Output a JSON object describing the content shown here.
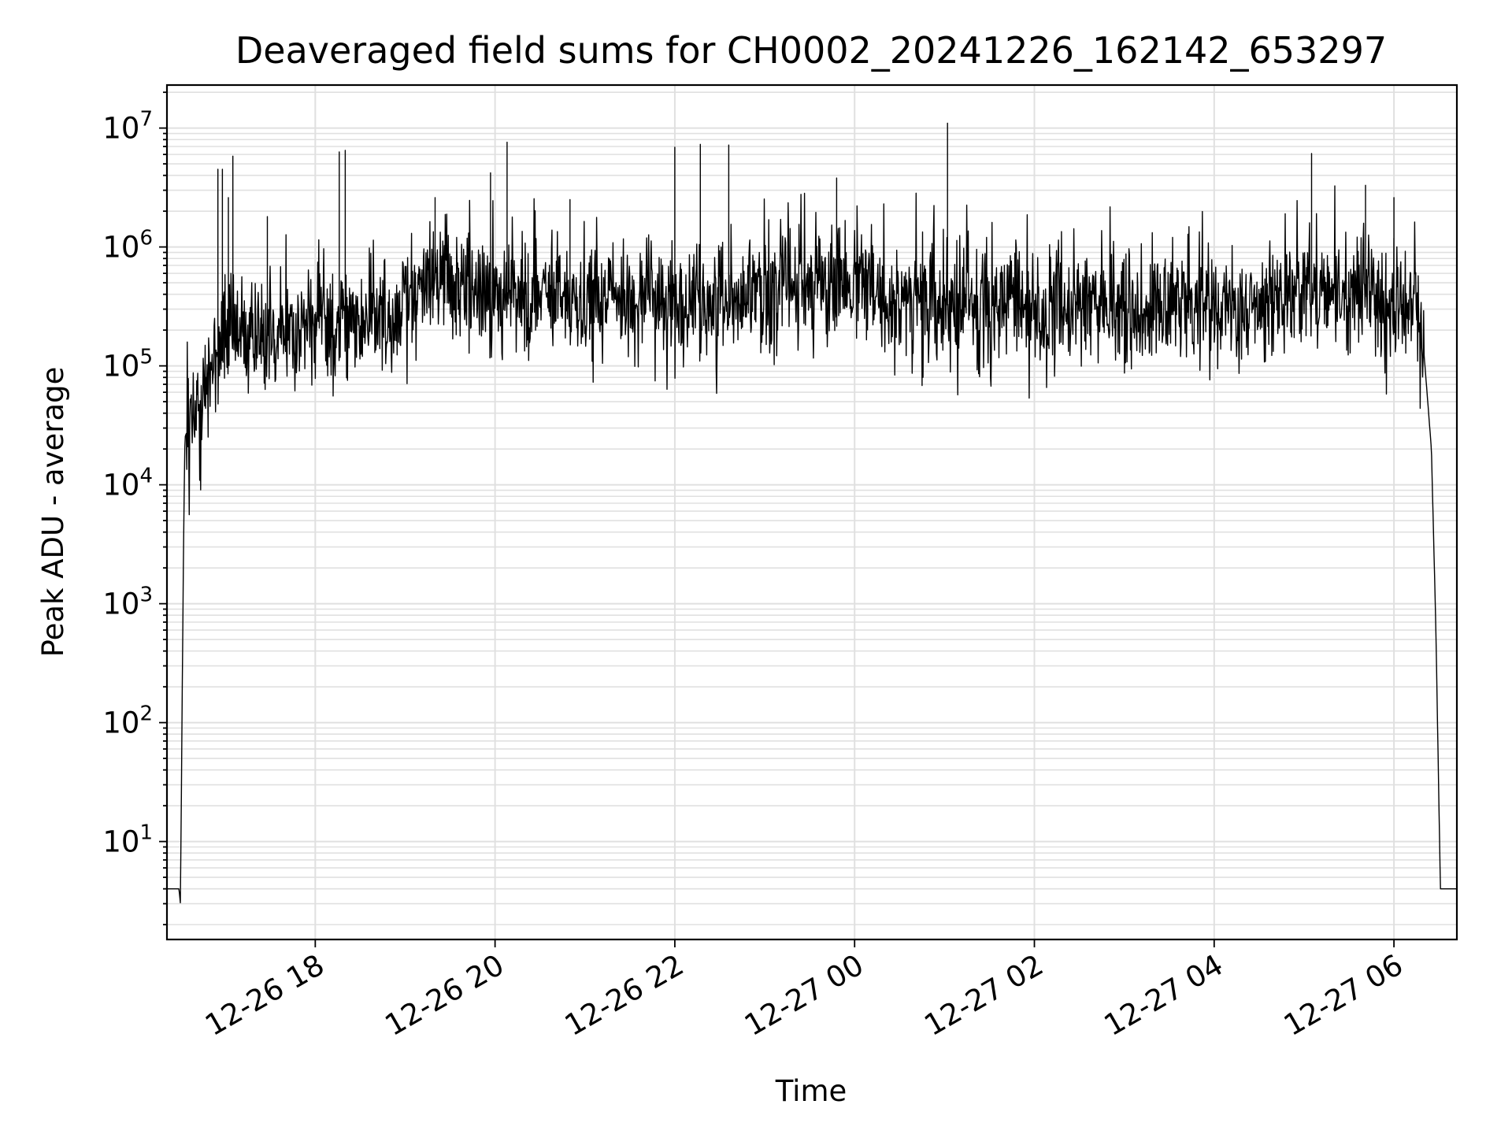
{
  "chart_data": {
    "type": "line",
    "title": "Deaveraged field sums for CH0002_20241226_162142_653297",
    "xlabel": "Time",
    "ylabel": "Peak ADU - average",
    "yscale": "log",
    "ylim": [
      1.5,
      23000000
    ],
    "xlim": [
      "2024-12-26 16:21",
      "2024-12-27 06:42"
    ],
    "grid": {
      "major": true,
      "minor": true,
      "color": "#e0e0e0"
    },
    "x_ticks": [
      {
        "t": "2024-12-26 18:00",
        "label": "12-26 18"
      },
      {
        "t": "2024-12-26 20:00",
        "label": "12-26 20"
      },
      {
        "t": "2024-12-26 22:00",
        "label": "12-26 22"
      },
      {
        "t": "2024-12-27 00:00",
        "label": "12-27 00"
      },
      {
        "t": "2024-12-27 02:00",
        "label": "12-27 02"
      },
      {
        "t": "2024-12-27 04:00",
        "label": "12-27 04"
      },
      {
        "t": "2024-12-27 06:00",
        "label": "12-27 06"
      }
    ],
    "y_ticks": [
      {
        "value": 10,
        "base": "10",
        "exp": "1"
      },
      {
        "value": 100,
        "base": "10",
        "exp": "2"
      },
      {
        "value": 1000,
        "base": "10",
        "exp": "3"
      },
      {
        "value": 10000,
        "base": "10",
        "exp": "4"
      },
      {
        "value": 100000,
        "base": "10",
        "exp": "5"
      },
      {
        "value": 1000000,
        "base": "10",
        "exp": "6"
      },
      {
        "value": 10000000,
        "base": "10",
        "exp": "7"
      }
    ],
    "series": [
      {
        "color": "#000000",
        "baseline_segments": [
          {
            "t": "2024-12-26 16:21",
            "value": 4
          },
          {
            "t": "2024-12-26 16:29",
            "value": 4
          },
          {
            "t": "2024-12-26 16:30",
            "value": 3
          },
          {
            "t": "2024-12-26 16:31",
            "value": 90
          },
          {
            "t": "2024-12-26 16:32",
            "value": 2500
          },
          {
            "t": "2024-12-26 16:33",
            "value": 25000
          },
          {
            "t": "2024-12-26 16:37",
            "value": 35000
          },
          {
            "t": "2024-12-26 16:42",
            "value": 40000
          },
          {
            "t": "2024-12-26 16:50",
            "value": 90000
          },
          {
            "t": "2024-12-26 17:00",
            "value": 180000
          },
          {
            "t": "2024-12-26 18:00",
            "value": 220000
          },
          {
            "t": "2024-12-26 18:30",
            "value": 230000
          },
          {
            "t": "2024-12-26 19:00",
            "value": 330000
          },
          {
            "t": "2024-12-26 19:20",
            "value": 700000
          },
          {
            "t": "2024-12-26 19:40",
            "value": 450000
          },
          {
            "t": "2024-12-26 20:00",
            "value": 380000
          },
          {
            "t": "2024-12-26 22:00",
            "value": 350000
          },
          {
            "t": "2024-12-26 23:50",
            "value": 480000
          },
          {
            "t": "2024-12-27 00:30",
            "value": 340000
          },
          {
            "t": "2024-12-27 02:00",
            "value": 300000
          },
          {
            "t": "2024-12-27 04:00",
            "value": 320000
          },
          {
            "t": "2024-12-27 05:30",
            "value": 420000
          },
          {
            "t": "2024-12-27 06:15",
            "value": 380000
          },
          {
            "t": "2024-12-27 06:20",
            "value": 130000
          },
          {
            "t": "2024-12-27 06:25",
            "value": 20000
          },
          {
            "t": "2024-12-27 06:28",
            "value": 600
          },
          {
            "t": "2024-12-27 06:31",
            "value": 4
          },
          {
            "t": "2024-12-27 06:42",
            "value": 4
          }
        ],
        "noise_spread_decades": 0.55,
        "spikes": [
          {
            "t": "2024-12-26 16:55",
            "value": 4500000
          },
          {
            "t": "2024-12-26 16:58",
            "value": 4500000
          },
          {
            "t": "2024-12-26 17:02",
            "value": 2600000
          },
          {
            "t": "2024-12-26 17:05",
            "value": 5800000
          },
          {
            "t": "2024-12-26 17:28",
            "value": 1800000
          },
          {
            "t": "2024-12-26 18:16",
            "value": 6300000
          },
          {
            "t": "2024-12-26 18:20",
            "value": 6500000
          },
          {
            "t": "2024-12-26 19:20",
            "value": 2600000
          },
          {
            "t": "2024-12-26 19:57",
            "value": 4200000
          },
          {
            "t": "2024-12-26 20:08",
            "value": 7600000
          },
          {
            "t": "2024-12-26 20:50",
            "value": 2500000
          },
          {
            "t": "2024-12-26 22:00",
            "value": 6900000
          },
          {
            "t": "2024-12-26 22:17",
            "value": 7300000
          },
          {
            "t": "2024-12-26 22:36",
            "value": 7200000
          },
          {
            "t": "2024-12-26 23:48",
            "value": 3800000
          },
          {
            "t": "2024-12-27 01:02",
            "value": 11000000
          },
          {
            "t": "2024-12-27 05:05",
            "value": 6100000
          },
          {
            "t": "2024-12-27 05:41",
            "value": 3300000
          },
          {
            "t": "2024-12-27 06:00",
            "value": 2600000
          }
        ]
      }
    ]
  }
}
